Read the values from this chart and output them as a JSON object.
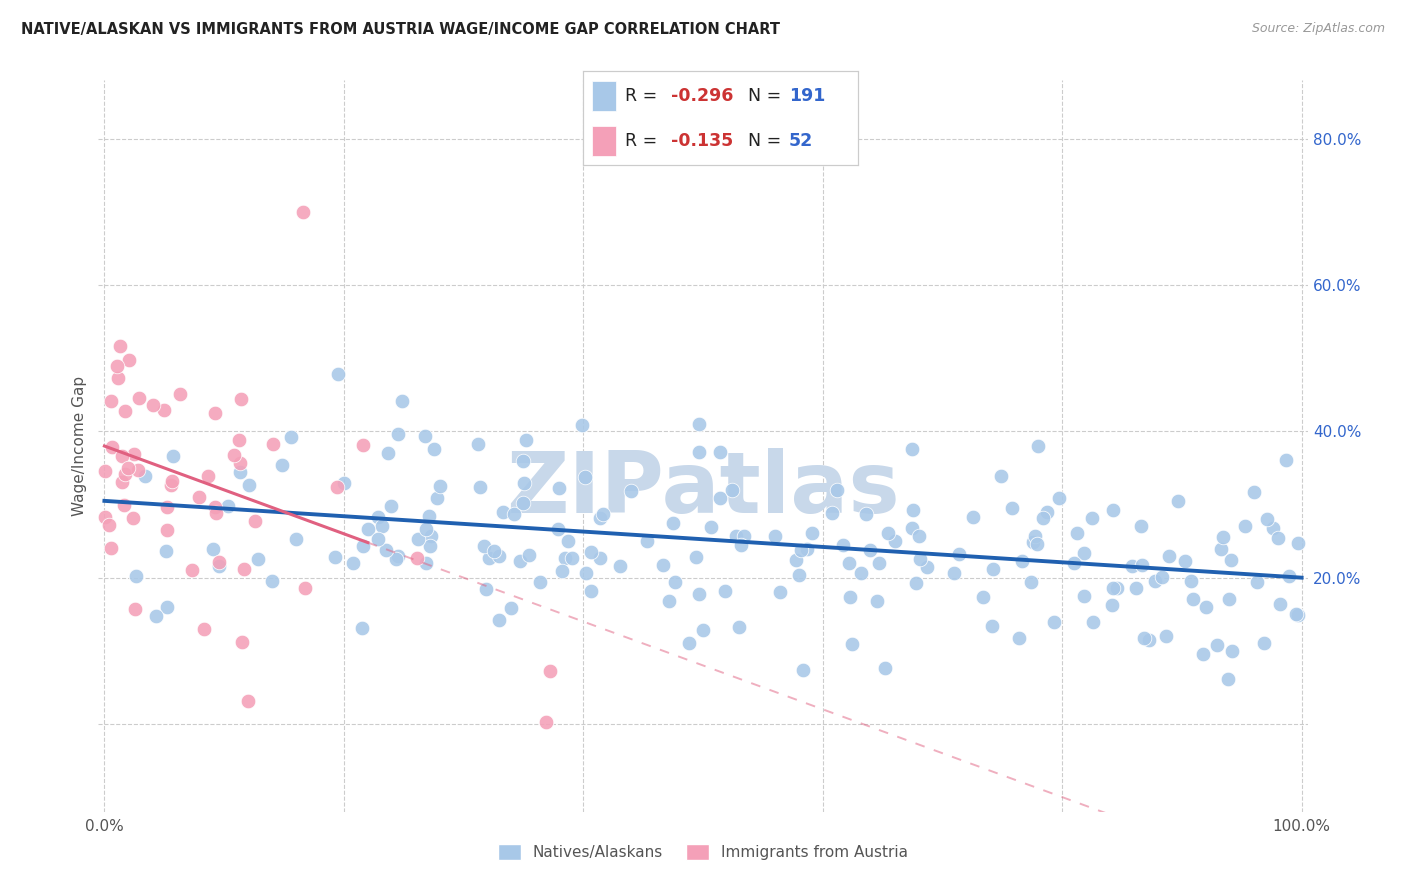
{
  "title": "NATIVE/ALASKAN VS IMMIGRANTS FROM AUSTRIA WAGE/INCOME GAP CORRELATION CHART",
  "source": "Source: ZipAtlas.com",
  "ylabel": "Wage/Income Gap",
  "blue_color": "#a8c8e8",
  "pink_color": "#f4a0b8",
  "trend_blue_color": "#2060b0",
  "trend_pink_color": "#e06080",
  "watermark": "ZIPatlas",
  "watermark_color": "#c8d8ea",
  "legend_r1": "R = -0.296",
  "legend_n1": "N = 191",
  "legend_r2": "R = -0.135",
  "legend_n2": "N = 52",
  "r_color": "#cc3333",
  "n_color": "#3366cc",
  "blue_intercept": 0.305,
  "blue_slope": -0.105,
  "pink_intercept": 0.38,
  "pink_slope": -0.6,
  "ylim_min": -0.12,
  "ylim_max": 0.88,
  "xlim_min": -0.005,
  "xlim_max": 1.005
}
